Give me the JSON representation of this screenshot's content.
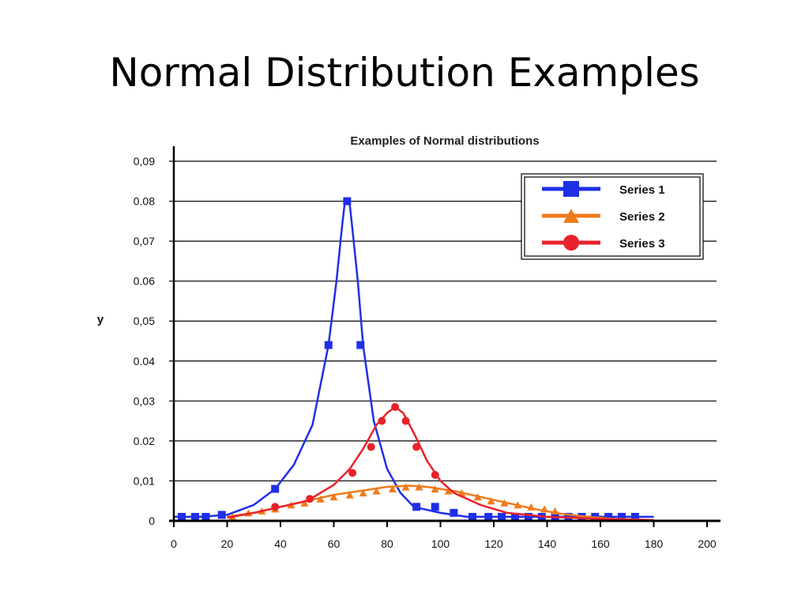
{
  "slide": {
    "title": "Normal Distribution Examples"
  },
  "chart_data": {
    "type": "line",
    "title": "Examples of Normal distributions",
    "xlabel": "",
    "ylabel": "y",
    "xlim": [
      0,
      200
    ],
    "ylim": [
      0,
      0.09
    ],
    "x_ticks": [
      0,
      20,
      40,
      60,
      80,
      100,
      120,
      140,
      160,
      180,
      200
    ],
    "y_ticks": [
      0,
      0.01,
      0.02,
      0.03,
      0.04,
      0.05,
      0.06,
      0.07,
      0.08,
      0.09
    ],
    "y_tick_labels": [
      "0",
      "0,01",
      "0.02",
      "0,03",
      "0.04",
      "0,05",
      "0.06",
      "0,07",
      "0.08",
      "0,09"
    ],
    "grid": "horizontal",
    "legend_position": "top-right",
    "series": [
      {
        "name": "Series 1",
        "color": "#1f2fe8",
        "marker": "square",
        "curve": [
          [
            0,
            0.001
          ],
          [
            10,
            0.001
          ],
          [
            20,
            0.0015
          ],
          [
            30,
            0.004
          ],
          [
            38,
            0.008
          ],
          [
            45,
            0.014
          ],
          [
            52,
            0.024
          ],
          [
            58,
            0.044
          ],
          [
            61,
            0.06
          ],
          [
            63,
            0.073
          ],
          [
            64,
            0.079
          ],
          [
            65,
            0.0805
          ],
          [
            66,
            0.079
          ],
          [
            67,
            0.073
          ],
          [
            69,
            0.06
          ],
          [
            71,
            0.044
          ],
          [
            75,
            0.025
          ],
          [
            80,
            0.013
          ],
          [
            85,
            0.007
          ],
          [
            90,
            0.0035
          ],
          [
            100,
            0.002
          ],
          [
            110,
            0.001
          ],
          [
            120,
            0.001
          ],
          [
            180,
            0.001
          ]
        ],
        "points": [
          [
            3,
            0.001
          ],
          [
            8,
            0.001
          ],
          [
            12,
            0.001
          ],
          [
            18,
            0.0015
          ],
          [
            38,
            0.008
          ],
          [
            58,
            0.044
          ],
          [
            65,
            0.08
          ],
          [
            70,
            0.044
          ],
          [
            91,
            0.0035
          ],
          [
            98,
            0.0035
          ],
          [
            105,
            0.002
          ],
          [
            112,
            0.001
          ],
          [
            118,
            0.001
          ],
          [
            123,
            0.001
          ],
          [
            128,
            0.001
          ],
          [
            133,
            0.001
          ],
          [
            138,
            0.001
          ],
          [
            143,
            0.001
          ],
          [
            148,
            0.001
          ],
          [
            153,
            0.001
          ],
          [
            158,
            0.001
          ],
          [
            163,
            0.001
          ],
          [
            168,
            0.001
          ],
          [
            173,
            0.001
          ]
        ]
      },
      {
        "name": "Series 2",
        "color": "#f07a1a",
        "marker": "triangle",
        "curve": [
          [
            20,
            0.001
          ],
          [
            30,
            0.002
          ],
          [
            40,
            0.0035
          ],
          [
            50,
            0.005
          ],
          [
            60,
            0.0065
          ],
          [
            70,
            0.0075
          ],
          [
            80,
            0.0085
          ],
          [
            88,
            0.0088
          ],
          [
            95,
            0.0085
          ],
          [
            105,
            0.0075
          ],
          [
            115,
            0.006
          ],
          [
            125,
            0.0045
          ],
          [
            135,
            0.003
          ],
          [
            145,
            0.0018
          ],
          [
            155,
            0.001
          ],
          [
            165,
            0.0005
          ],
          [
            180,
            0.0002
          ]
        ],
        "points": [
          [
            22,
            0.001
          ],
          [
            28,
            0.002
          ],
          [
            33,
            0.0025
          ],
          [
            38,
            0.003
          ],
          [
            44,
            0.004
          ],
          [
            49,
            0.0045
          ],
          [
            55,
            0.0055
          ],
          [
            60,
            0.006
          ],
          [
            66,
            0.0065
          ],
          [
            71,
            0.007
          ],
          [
            76,
            0.0075
          ],
          [
            82,
            0.008
          ],
          [
            87,
            0.0085
          ],
          [
            92,
            0.0085
          ],
          [
            98,
            0.008
          ],
          [
            103,
            0.0075
          ],
          [
            108,
            0.007
          ],
          [
            114,
            0.006
          ],
          [
            119,
            0.005
          ],
          [
            124,
            0.0045
          ],
          [
            129,
            0.004
          ],
          [
            134,
            0.0035
          ],
          [
            139,
            0.003
          ],
          [
            143,
            0.0025
          ]
        ]
      },
      {
        "name": "Series 3",
        "color": "#e8222a",
        "marker": "circle",
        "curve": [
          [
            20,
            0.0008
          ],
          [
            30,
            0.002
          ],
          [
            40,
            0.0035
          ],
          [
            50,
            0.005
          ],
          [
            60,
            0.009
          ],
          [
            66,
            0.013
          ],
          [
            71,
            0.018
          ],
          [
            76,
            0.024
          ],
          [
            80,
            0.027
          ],
          [
            83,
            0.0285
          ],
          [
            86,
            0.027
          ],
          [
            90,
            0.022
          ],
          [
            95,
            0.015
          ],
          [
            100,
            0.01
          ],
          [
            105,
            0.007
          ],
          [
            115,
            0.004
          ],
          [
            125,
            0.002
          ],
          [
            140,
            0.001
          ],
          [
            160,
            0.0005
          ],
          [
            180,
            0.0002
          ]
        ],
        "points": [
          [
            38,
            0.0035
          ],
          [
            51,
            0.0055
          ],
          [
            67,
            0.012
          ],
          [
            74,
            0.0185
          ],
          [
            78,
            0.025
          ],
          [
            83,
            0.0285
          ],
          [
            87,
            0.025
          ],
          [
            91,
            0.0185
          ],
          [
            98,
            0.0115
          ]
        ]
      }
    ]
  }
}
